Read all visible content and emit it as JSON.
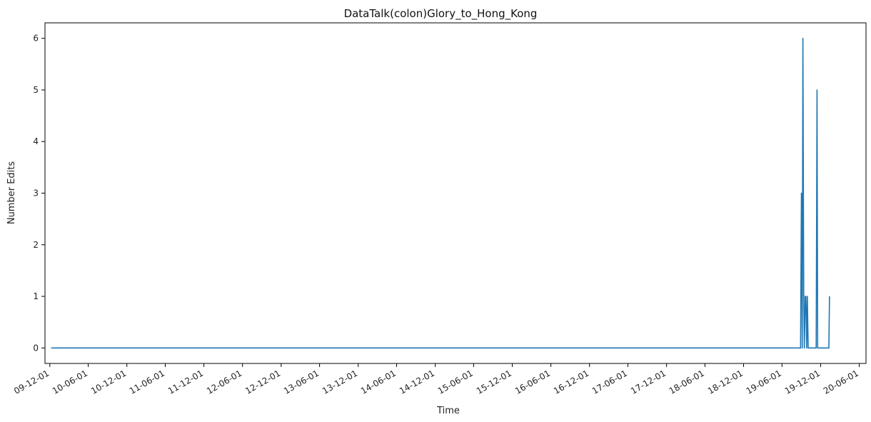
{
  "chart_data": {
    "type": "line",
    "title": "DataTalk(colon)Glory_to_Hong_Kong",
    "xlabel": "Time",
    "ylabel": "Number Edits",
    "x_axis_type": "date",
    "x_tick_labels": [
      "09-12-01",
      "10-06-01",
      "10-12-01",
      "11-06-01",
      "11-12-01",
      "12-06-01",
      "12-12-01",
      "13-06-01",
      "13-12-01",
      "14-06-01",
      "14-12-01",
      "15-06-01",
      "15-12-01",
      "16-06-01",
      "16-12-01",
      "17-06-01",
      "17-12-01",
      "18-06-01",
      "18-12-01",
      "19-06-01",
      "19-12-01",
      "20-06-01"
    ],
    "x_tick_dates": [
      "2009-12-01",
      "2010-06-01",
      "2010-12-01",
      "2011-06-01",
      "2011-12-01",
      "2012-06-01",
      "2012-12-01",
      "2013-06-01",
      "2013-12-01",
      "2014-06-01",
      "2014-12-01",
      "2015-06-01",
      "2015-12-01",
      "2016-06-01",
      "2016-12-01",
      "2017-06-01",
      "2017-12-01",
      "2018-06-01",
      "2018-12-01",
      "2019-06-01",
      "2019-12-01",
      "2020-06-01"
    ],
    "xlim": [
      "2009-11-08",
      "2020-07-03"
    ],
    "y_ticks": [
      0,
      1,
      2,
      3,
      4,
      5,
      6
    ],
    "ylim": [
      -0.3,
      6.3
    ],
    "grid": false,
    "line_color": "#1f77b4",
    "series": [
      {
        "x": [
          "2009-12-07",
          "2019-08-28",
          "2019-09-01",
          "2019-09-05",
          "2019-09-08",
          "2019-09-12",
          "2019-09-15",
          "2019-09-19",
          "2019-09-22",
          "2019-09-26",
          "2019-09-29",
          "2019-10-03",
          "2019-10-06",
          "2019-10-10",
          "2019-10-13",
          "2019-10-17",
          "2019-10-20",
          "2019-10-24",
          "2019-10-27",
          "2019-10-31",
          "2019-11-03",
          "2019-11-07",
          "2019-11-10",
          "2019-11-14",
          "2019-11-17",
          "2019-11-21",
          "2019-11-24",
          "2019-11-28",
          "2019-12-01",
          "2019-12-05",
          "2019-12-08",
          "2019-12-12",
          "2019-12-15",
          "2019-12-19",
          "2019-12-22",
          "2019-12-26",
          "2019-12-29",
          "2020-01-02",
          "2020-01-05",
          "2020-01-09",
          "2020-01-12"
        ],
        "y": [
          0,
          0,
          3,
          0,
          6,
          1,
          0,
          1,
          1,
          0,
          1,
          0,
          0,
          0,
          0,
          0,
          0,
          0,
          0,
          0,
          0,
          0,
          0,
          5,
          0,
          0,
          0,
          0,
          0,
          0,
          0,
          0,
          0,
          0,
          0,
          0,
          0,
          0,
          0,
          0,
          1
        ]
      }
    ]
  }
}
